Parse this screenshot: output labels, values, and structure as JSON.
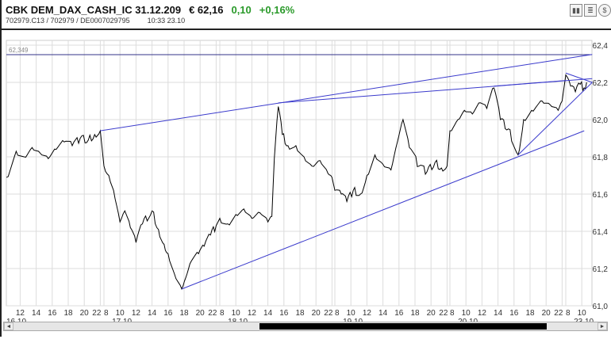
{
  "header": {
    "title": "CBK DEM_DAX_CASH_IC 31.12.209",
    "price": "€ 62,16",
    "change": "0,10",
    "change_pct": "+0,16%",
    "ids": "702979.C13  /  702979  /  DE0007029795",
    "time": "10:33   23.10",
    "icons": [
      "bar-chart-icon",
      "news-icon",
      "currency-icon"
    ]
  },
  "colors": {
    "positive": "#2a9a2a",
    "price_line": "#000000",
    "trend_line": "#3a3acc",
    "grid": "#dcdcdc"
  },
  "chart_data": {
    "type": "line",
    "ylim": [
      61.0,
      62.4
    ],
    "yticks": [
      "61,0",
      "61,2",
      "61,4",
      "61,6",
      "61,8",
      "62,0",
      "62,2",
      "62,4"
    ],
    "ytick_values": [
      61.0,
      61.2,
      61.4,
      61.6,
      61.8,
      62.0,
      62.2,
      62.4
    ],
    "grid": true,
    "days": [
      {
        "label": "16.10",
        "hours": [
          12,
          14,
          16,
          18,
          20,
          22
        ]
      },
      {
        "label": "17.10",
        "hours": [
          8,
          10,
          12,
          14,
          16,
          18,
          20,
          22
        ]
      },
      {
        "label": "18.10",
        "hours": [
          8,
          10,
          12,
          14,
          16,
          18,
          20,
          22
        ]
      },
      {
        "label": "19.10",
        "hours": [
          8,
          10,
          12,
          14,
          16,
          18,
          20,
          22
        ]
      },
      {
        "label": "20.10",
        "hours": [
          8,
          10,
          12,
          14,
          16,
          18,
          20,
          22
        ]
      },
      {
        "label": "23.10",
        "hours": [
          8,
          10
        ]
      }
    ],
    "series": [
      {
        "points": [
          [
            "16.10",
            10.3,
            61.69
          ],
          [
            "16.10",
            11.5,
            61.83
          ],
          [
            "16.10",
            12.5,
            61.8
          ],
          [
            "16.10",
            13.5,
            61.85
          ],
          [
            "16.10",
            14.5,
            61.82
          ],
          [
            "16.10",
            15.5,
            61.79
          ],
          [
            "16.10",
            16.5,
            61.84
          ],
          [
            "16.10",
            17.5,
            61.88
          ],
          [
            "16.10",
            18.5,
            61.86
          ],
          [
            "16.10",
            19.5,
            61.9
          ],
          [
            "16.10",
            20.5,
            61.89
          ],
          [
            "16.10",
            21.3,
            61.92
          ],
          [
            "16.10",
            22.0,
            61.94
          ],
          [
            "17.10",
            8.0,
            61.75
          ],
          [
            "17.10",
            8.6,
            61.7
          ],
          [
            "17.10",
            9.2,
            61.62
          ],
          [
            "17.10",
            10.0,
            61.45
          ],
          [
            "17.10",
            10.6,
            61.51
          ],
          [
            "17.10",
            11.3,
            61.42
          ],
          [
            "17.10",
            12.0,
            61.34
          ],
          [
            "17.10",
            12.8,
            61.44
          ],
          [
            "17.10",
            14.0,
            61.51
          ],
          [
            "17.10",
            14.8,
            61.41
          ],
          [
            "17.10",
            15.5,
            61.33
          ],
          [
            "17.10",
            16.0,
            61.28
          ],
          [
            "17.10",
            16.8,
            61.17
          ],
          [
            "17.10",
            17.7,
            61.09
          ],
          [
            "17.10",
            18.2,
            61.15
          ],
          [
            "17.10",
            18.9,
            61.24
          ],
          [
            "17.10",
            19.8,
            61.28
          ],
          [
            "17.10",
            20.5,
            61.32
          ],
          [
            "17.10",
            21.3,
            61.38
          ],
          [
            "17.10",
            22.0,
            61.43
          ],
          [
            "18.10",
            8.0,
            61.47
          ],
          [
            "18.10",
            9.0,
            61.44
          ],
          [
            "18.10",
            10.0,
            61.49
          ],
          [
            "18.10",
            11.0,
            61.52
          ],
          [
            "18.10",
            12.0,
            61.47
          ],
          [
            "18.10",
            13.0,
            61.5
          ],
          [
            "18.10",
            14.0,
            61.45
          ],
          [
            "18.10",
            14.5,
            61.48
          ],
          [
            "18.10",
            14.8,
            61.79
          ],
          [
            "18.10",
            15.3,
            62.07
          ],
          [
            "18.10",
            15.8,
            61.92
          ],
          [
            "18.10",
            16.5,
            61.86
          ],
          [
            "18.10",
            17.5,
            61.86
          ],
          [
            "18.10",
            18.5,
            61.8
          ],
          [
            "18.10",
            19.5,
            61.75
          ],
          [
            "18.10",
            20.5,
            61.78
          ],
          [
            "18.10",
            21.5,
            61.71
          ],
          [
            "18.10",
            22.0,
            61.69
          ],
          [
            "19.10",
            8.0,
            61.62
          ],
          [
            "19.10",
            8.8,
            61.6
          ],
          [
            "19.10",
            9.5,
            61.56
          ],
          [
            "19.10",
            10.3,
            61.62
          ],
          [
            "19.10",
            11.2,
            61.6
          ],
          [
            "19.10",
            12.0,
            61.7
          ],
          [
            "19.10",
            13.0,
            61.81
          ],
          [
            "19.10",
            14.0,
            61.76
          ],
          [
            "19.10",
            15.0,
            61.73
          ],
          [
            "19.10",
            15.8,
            61.88
          ],
          [
            "19.10",
            16.5,
            62.0
          ],
          [
            "19.10",
            17.3,
            61.85
          ],
          [
            "19.10",
            18.5,
            61.75
          ],
          [
            "19.10",
            19.5,
            61.72
          ],
          [
            "19.10",
            20.5,
            61.77
          ],
          [
            "19.10",
            21.3,
            61.74
          ],
          [
            "19.10",
            22.0,
            61.75
          ],
          [
            "20.10",
            8.0,
            61.94
          ],
          [
            "20.10",
            9.0,
            62.0
          ],
          [
            "20.10",
            9.8,
            62.05
          ],
          [
            "20.10",
            10.8,
            62.03
          ],
          [
            "20.10",
            11.8,
            62.09
          ],
          [
            "20.10",
            12.6,
            62.06
          ],
          [
            "20.10",
            13.5,
            62.17
          ],
          [
            "20.10",
            14.3,
            62.0
          ],
          [
            "20.10",
            15.3,
            61.95
          ],
          [
            "20.10",
            16.5,
            61.81
          ],
          [
            "20.10",
            17.2,
            62.0
          ],
          [
            "20.10",
            18.2,
            62.05
          ],
          [
            "20.10",
            19.5,
            62.1
          ],
          [
            "20.10",
            20.5,
            62.08
          ],
          [
            "20.10",
            21.5,
            62.05
          ],
          [
            "20.10",
            22.0,
            62.1
          ],
          [
            "23.10",
            8.0,
            62.24
          ],
          [
            "23.10",
            8.6,
            62.18
          ],
          [
            "23.10",
            9.2,
            62.15
          ],
          [
            "23.10",
            9.8,
            62.19
          ],
          [
            "23.10",
            10.3,
            62.17
          ],
          [
            "23.10",
            10.6,
            62.2
          ]
        ]
      }
    ],
    "annotations": {
      "horizontal_line": {
        "value": 62.349,
        "label": "62,349"
      },
      "trend_lines": [
        [
          [
            "16.10",
            22.0,
            61.94
          ],
          [
            "23.10",
            11.3,
            62.35
          ]
        ],
        [
          [
            "18.10",
            15.3,
            62.09
          ],
          [
            "23.10",
            11.3,
            62.22
          ]
        ],
        [
          [
            "17.10",
            17.7,
            61.09
          ],
          [
            "23.10",
            10.3,
            61.94
          ]
        ],
        [
          [
            "20.10",
            16.5,
            61.81
          ],
          [
            "23.10",
            11.3,
            62.2
          ]
        ],
        [
          [
            "23.10",
            8.0,
            62.25
          ],
          [
            "23.10",
            11.3,
            62.2
          ]
        ],
        [
          [
            "20.10",
            13.5,
            62.18
          ],
          [
            "23.10",
            8.0,
            62.21
          ]
        ]
      ]
    }
  },
  "scrollbar": {
    "thumb_start": 0.42,
    "thumb_end": 0.91,
    "left_arrow": "◄",
    "right_arrow": "►"
  }
}
